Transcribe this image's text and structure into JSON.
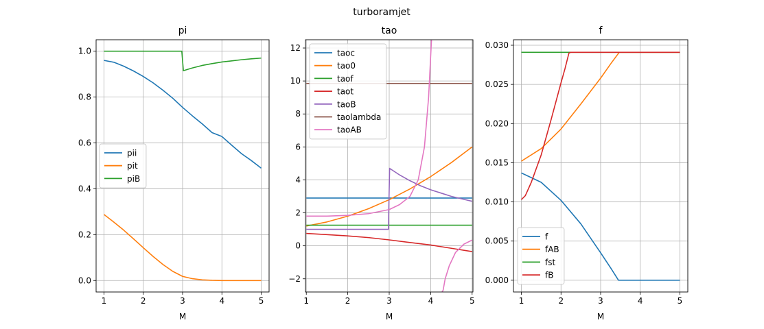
{
  "suptitle": "turboramjet",
  "chart_data": [
    {
      "type": "line",
      "title": "pi",
      "xlabel": "M",
      "ylabel": "",
      "xlim": [
        0.8,
        5.2
      ],
      "ylim": [
        -0.05,
        1.05
      ],
      "xticks": [
        1,
        2,
        3,
        4,
        5
      ],
      "yticks": [
        0.0,
        0.2,
        0.4,
        0.6,
        0.8,
        1.0
      ],
      "ytick_labels": [
        "0.0",
        "0.2",
        "0.4",
        "0.6",
        "0.8",
        "1.0"
      ],
      "grid": true,
      "legend": "center-left",
      "series": [
        {
          "name": "pii",
          "color": "#1f77b4",
          "x": [
            1,
            1.25,
            1.5,
            1.75,
            2,
            2.25,
            2.5,
            2.75,
            3,
            3.25,
            3.5,
            3.75,
            4,
            4.25,
            4.5,
            4.75,
            5
          ],
          "y": [
            0.96,
            0.952,
            0.935,
            0.914,
            0.89,
            0.862,
            0.83,
            0.795,
            0.755,
            0.718,
            0.683,
            0.645,
            0.628,
            0.59,
            0.553,
            0.523,
            0.49
          ]
        },
        {
          "name": "pit",
          "color": "#ff7f0e",
          "x": [
            1,
            1.25,
            1.5,
            1.75,
            2,
            2.25,
            2.5,
            2.75,
            3,
            3.25,
            3.5,
            3.75,
            4,
            4.25,
            4.5,
            4.75,
            5
          ],
          "y": [
            0.288,
            0.255,
            0.22,
            0.182,
            0.143,
            0.105,
            0.07,
            0.04,
            0.018,
            0.008,
            0.003,
            0.001,
            0.0,
            0.0,
            0.0,
            0.0,
            0.0
          ]
        },
        {
          "name": "piB",
          "color": "#2ca02c",
          "x": [
            1,
            2,
            2.98,
            3.02,
            3.25,
            3.5,
            3.75,
            4,
            4.25,
            4.5,
            4.75,
            5
          ],
          "y": [
            1.0,
            1.0,
            1.0,
            0.915,
            0.927,
            0.938,
            0.946,
            0.953,
            0.958,
            0.963,
            0.967,
            0.97
          ]
        }
      ]
    },
    {
      "type": "line",
      "title": "tao",
      "xlabel": "M",
      "ylabel": "",
      "xlim": [
        0.98,
        5.02
      ],
      "ylim": [
        -2.8,
        12.5
      ],
      "xticks": [
        1,
        2,
        3,
        4,
        5
      ],
      "yticks": [
        -2,
        0,
        2,
        4,
        6,
        8,
        10,
        12
      ],
      "ytick_labels": [
        "−2",
        "0",
        "2",
        "4",
        "6",
        "8",
        "10",
        "12"
      ],
      "grid": true,
      "legend": "upper-left",
      "series": [
        {
          "name": "taoc",
          "color": "#1f77b4",
          "x": [
            1,
            5
          ],
          "y": [
            2.9,
            2.9
          ]
        },
        {
          "name": "tao0",
          "color": "#ff7f0e",
          "x": [
            1,
            1.5,
            2,
            2.5,
            3,
            3.5,
            4,
            4.5,
            5
          ],
          "y": [
            1.2,
            1.45,
            1.8,
            2.25,
            2.8,
            3.45,
            4.2,
            5.05,
            6.0
          ]
        },
        {
          "name": "taof",
          "color": "#2ca02c",
          "x": [
            1,
            5
          ],
          "y": [
            1.25,
            1.25
          ]
        },
        {
          "name": "taot",
          "color": "#d62728",
          "x": [
            1,
            1.5,
            2,
            2.5,
            3,
            3.5,
            4,
            4.5,
            5
          ],
          "y": [
            0.75,
            0.68,
            0.6,
            0.5,
            0.36,
            0.2,
            0.05,
            -0.15,
            -0.35
          ]
        },
        {
          "name": "taoB",
          "color": "#9467bd",
          "x": [
            1,
            2.98,
            3.01,
            3.25,
            3.5,
            3.75,
            4,
            4.25,
            4.5,
            4.75,
            5
          ],
          "y": [
            1.0,
            1.0,
            4.7,
            4.3,
            3.95,
            3.65,
            3.4,
            3.2,
            3.0,
            2.85,
            2.7
          ]
        },
        {
          "name": "taolambda",
          "color": "#8c564b",
          "x": [
            1,
            5
          ],
          "y": [
            9.85,
            9.85
          ]
        },
        {
          "name": "taoAB",
          "color": "#e377c2",
          "x": [
            1,
            1.5,
            2,
            2.5,
            3,
            3.25,
            3.5,
            3.7,
            3.85,
            3.95,
            4.0,
            4.03,
            4.05,
            4.07,
            4.2,
            4.22,
            4.25,
            4.3,
            4.35,
            4.45,
            4.6,
            4.8,
            5.0
          ],
          "y": [
            1.8,
            1.8,
            1.85,
            1.95,
            2.2,
            2.5,
            3.0,
            4.0,
            6.0,
            9.0,
            11.5,
            13.0,
            null,
            null,
            -3.0,
            -3.0,
            -2.9,
            -2.7,
            -2.0,
            -1.2,
            -0.4,
            0.1,
            0.35
          ]
        }
      ]
    },
    {
      "type": "line",
      "title": "f",
      "xlabel": "M",
      "ylabel": "",
      "xlim": [
        0.8,
        5.2
      ],
      "ylim": [
        -0.0015,
        0.0307
      ],
      "xticks": [
        1,
        2,
        3,
        4,
        5
      ],
      "yticks": [
        0.0,
        0.005,
        0.01,
        0.015,
        0.02,
        0.025,
        0.03
      ],
      "ytick_labels": [
        "0.000",
        "0.005",
        "0.010",
        "0.015",
        "0.020",
        "0.025",
        "0.030"
      ],
      "grid": true,
      "legend": "lower-left",
      "series": [
        {
          "name": "f",
          "color": "#1f77b4",
          "x": [
            1,
            1.5,
            2,
            2.5,
            3,
            3.25,
            3.45,
            3.5,
            4,
            4.5,
            5
          ],
          "y": [
            0.0137,
            0.0125,
            0.0102,
            0.0072,
            0.0035,
            0.0016,
            0.0,
            0.0,
            0.0,
            0.0,
            0.0
          ]
        },
        {
          "name": "fAB",
          "color": "#ff7f0e",
          "x": [
            1,
            1.5,
            2,
            2.5,
            3,
            3.25,
            3.47,
            3.5,
            4,
            4.5,
            5
          ],
          "y": [
            0.0152,
            0.0168,
            0.0193,
            0.0225,
            0.0258,
            0.0276,
            0.0291,
            0.0291,
            0.0291,
            0.0291,
            0.0291
          ]
        },
        {
          "name": "fst",
          "color": "#2ca02c",
          "x": [
            1,
            5
          ],
          "y": [
            0.0291,
            0.0291
          ]
        },
        {
          "name": "fB",
          "color": "#d62728",
          "x": [
            1,
            1.1,
            1.25,
            1.5,
            1.75,
            2,
            2.1,
            2.2,
            2.25,
            3,
            4,
            5
          ],
          "y": [
            0.0103,
            0.0108,
            0.0125,
            0.016,
            0.0205,
            0.0252,
            0.027,
            0.029,
            0.0291,
            0.0291,
            0.0291,
            0.0291
          ]
        }
      ]
    }
  ]
}
